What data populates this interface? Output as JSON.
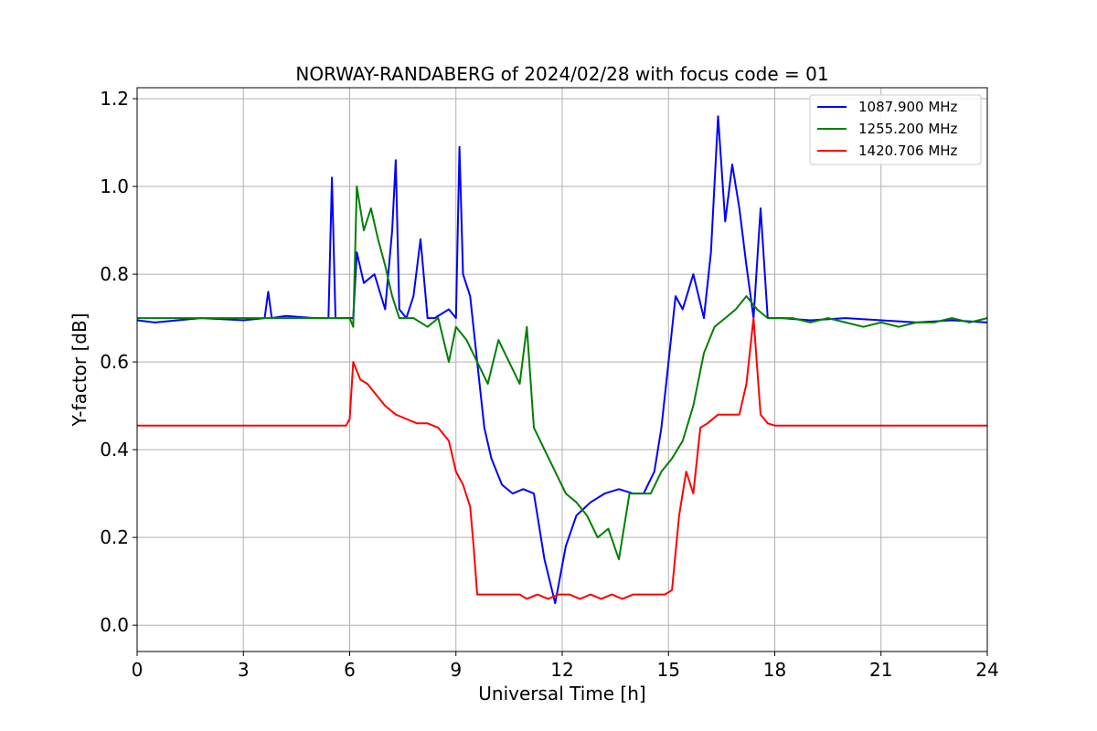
{
  "chart_data": {
    "type": "line",
    "title": "NORWAY-RANDABERG of 2024/02/28 with focus code = 01",
    "xlabel": "Universal Time [h]",
    "ylabel": "Y-factor [dB]",
    "xlim": [
      0,
      24
    ],
    "ylim": [
      -0.06,
      1.225
    ],
    "xticks": [
      0,
      3,
      6,
      9,
      12,
      15,
      18,
      21,
      24
    ],
    "xtick_labels": [
      "0",
      "3",
      "6",
      "9",
      "12",
      "15",
      "18",
      "21",
      "24"
    ],
    "yticks": [
      0.0,
      0.2,
      0.4,
      0.6,
      0.8,
      1.0,
      1.2
    ],
    "ytick_labels": [
      "0.0",
      "0.2",
      "0.4",
      "0.6",
      "0.8",
      "1.0",
      "1.2"
    ],
    "grid": true,
    "legend_position": "upper right",
    "series": [
      {
        "name": "1087.900 MHz",
        "color": "#0000ff",
        "x": [
          0,
          0.5,
          1.8,
          3.0,
          3.6,
          3.7,
          3.8,
          4.2,
          5.0,
          5.4,
          5.5,
          5.6,
          5.9,
          6.1,
          6.2,
          6.4,
          6.7,
          7.0,
          7.2,
          7.3,
          7.4,
          7.6,
          7.8,
          8.0,
          8.2,
          8.4,
          8.8,
          9.0,
          9.1,
          9.2,
          9.4,
          9.6,
          9.8,
          10.0,
          10.3,
          10.6,
          10.9,
          11.2,
          11.5,
          11.8,
          12.1,
          12.4,
          12.8,
          13.2,
          13.6,
          14.0,
          14.3,
          14.6,
          14.8,
          15.0,
          15.2,
          15.4,
          15.7,
          16.0,
          16.2,
          16.4,
          16.6,
          16.8,
          17.0,
          17.2,
          17.4,
          17.6,
          17.8,
          18.2,
          19.0,
          20.0,
          21.0,
          22.0,
          23.0,
          24.0
        ],
        "y": [
          0.695,
          0.69,
          0.7,
          0.695,
          0.7,
          0.76,
          0.7,
          0.705,
          0.7,
          0.7,
          1.02,
          0.7,
          0.7,
          0.7,
          0.85,
          0.78,
          0.8,
          0.72,
          0.9,
          1.06,
          0.72,
          0.7,
          0.75,
          0.88,
          0.7,
          0.7,
          0.72,
          0.7,
          1.09,
          0.8,
          0.75,
          0.6,
          0.45,
          0.38,
          0.32,
          0.3,
          0.31,
          0.3,
          0.15,
          0.05,
          0.18,
          0.25,
          0.28,
          0.3,
          0.31,
          0.3,
          0.3,
          0.35,
          0.45,
          0.6,
          0.75,
          0.72,
          0.8,
          0.7,
          0.85,
          1.16,
          0.92,
          1.05,
          0.95,
          0.82,
          0.7,
          0.95,
          0.7,
          0.7,
          0.695,
          0.7,
          0.695,
          0.69,
          0.695,
          0.69
        ]
      },
      {
        "name": "1255.200 MHz",
        "color": "#008000",
        "x": [
          0,
          1.0,
          2.0,
          3.0,
          4.0,
          5.0,
          6.0,
          6.1,
          6.2,
          6.4,
          6.6,
          6.8,
          7.0,
          7.2,
          7.4,
          7.8,
          8.2,
          8.5,
          8.8,
          9.0,
          9.3,
          9.6,
          9.9,
          10.2,
          10.5,
          10.8,
          11.0,
          11.2,
          11.5,
          11.8,
          12.1,
          12.4,
          12.7,
          13.0,
          13.3,
          13.6,
          13.9,
          14.2,
          14.5,
          14.8,
          15.1,
          15.4,
          15.7,
          16.0,
          16.3,
          16.6,
          16.9,
          17.2,
          17.5,
          17.8,
          18.0,
          18.5,
          19.0,
          19.5,
          20.0,
          20.5,
          21.0,
          21.5,
          22.0,
          22.5,
          23.0,
          23.5,
          24.0
        ],
        "y": [
          0.7,
          0.7,
          0.7,
          0.7,
          0.7,
          0.7,
          0.7,
          0.68,
          1.0,
          0.9,
          0.95,
          0.88,
          0.82,
          0.75,
          0.7,
          0.7,
          0.68,
          0.7,
          0.6,
          0.68,
          0.65,
          0.6,
          0.55,
          0.65,
          0.6,
          0.55,
          0.68,
          0.45,
          0.4,
          0.35,
          0.3,
          0.28,
          0.25,
          0.2,
          0.22,
          0.15,
          0.3,
          0.3,
          0.3,
          0.35,
          0.38,
          0.42,
          0.5,
          0.62,
          0.68,
          0.7,
          0.72,
          0.75,
          0.72,
          0.7,
          0.7,
          0.7,
          0.69,
          0.7,
          0.69,
          0.68,
          0.69,
          0.68,
          0.69,
          0.69,
          0.7,
          0.69,
          0.7
        ]
      },
      {
        "name": "1420.706 MHz",
        "color": "#ff0000",
        "x": [
          0,
          1.0,
          2.0,
          3.0,
          4.0,
          5.0,
          5.9,
          6.0,
          6.1,
          6.3,
          6.5,
          6.8,
          7.0,
          7.3,
          7.6,
          7.9,
          8.2,
          8.5,
          8.8,
          9.0,
          9.2,
          9.4,
          9.5,
          9.6,
          9.9,
          10.2,
          10.5,
          10.8,
          11.0,
          11.3,
          11.6,
          11.9,
          12.2,
          12.5,
          12.8,
          13.1,
          13.4,
          13.7,
          14.0,
          14.3,
          14.6,
          14.9,
          15.1,
          15.3,
          15.5,
          15.7,
          15.9,
          16.1,
          16.4,
          16.7,
          17.0,
          17.2,
          17.4,
          17.6,
          17.8,
          18.0,
          18.5,
          19.0,
          20.0,
          21.0,
          22.0,
          23.0,
          24.0
        ],
        "y": [
          0.455,
          0.455,
          0.455,
          0.455,
          0.455,
          0.455,
          0.455,
          0.47,
          0.6,
          0.56,
          0.55,
          0.52,
          0.5,
          0.48,
          0.47,
          0.46,
          0.46,
          0.45,
          0.42,
          0.35,
          0.32,
          0.27,
          0.18,
          0.07,
          0.07,
          0.07,
          0.07,
          0.07,
          0.06,
          0.07,
          0.06,
          0.07,
          0.07,
          0.06,
          0.07,
          0.06,
          0.07,
          0.06,
          0.07,
          0.07,
          0.07,
          0.07,
          0.08,
          0.25,
          0.35,
          0.3,
          0.45,
          0.46,
          0.48,
          0.48,
          0.48,
          0.55,
          0.7,
          0.48,
          0.46,
          0.455,
          0.455,
          0.455,
          0.455,
          0.455,
          0.455,
          0.455,
          0.455
        ]
      }
    ]
  }
}
